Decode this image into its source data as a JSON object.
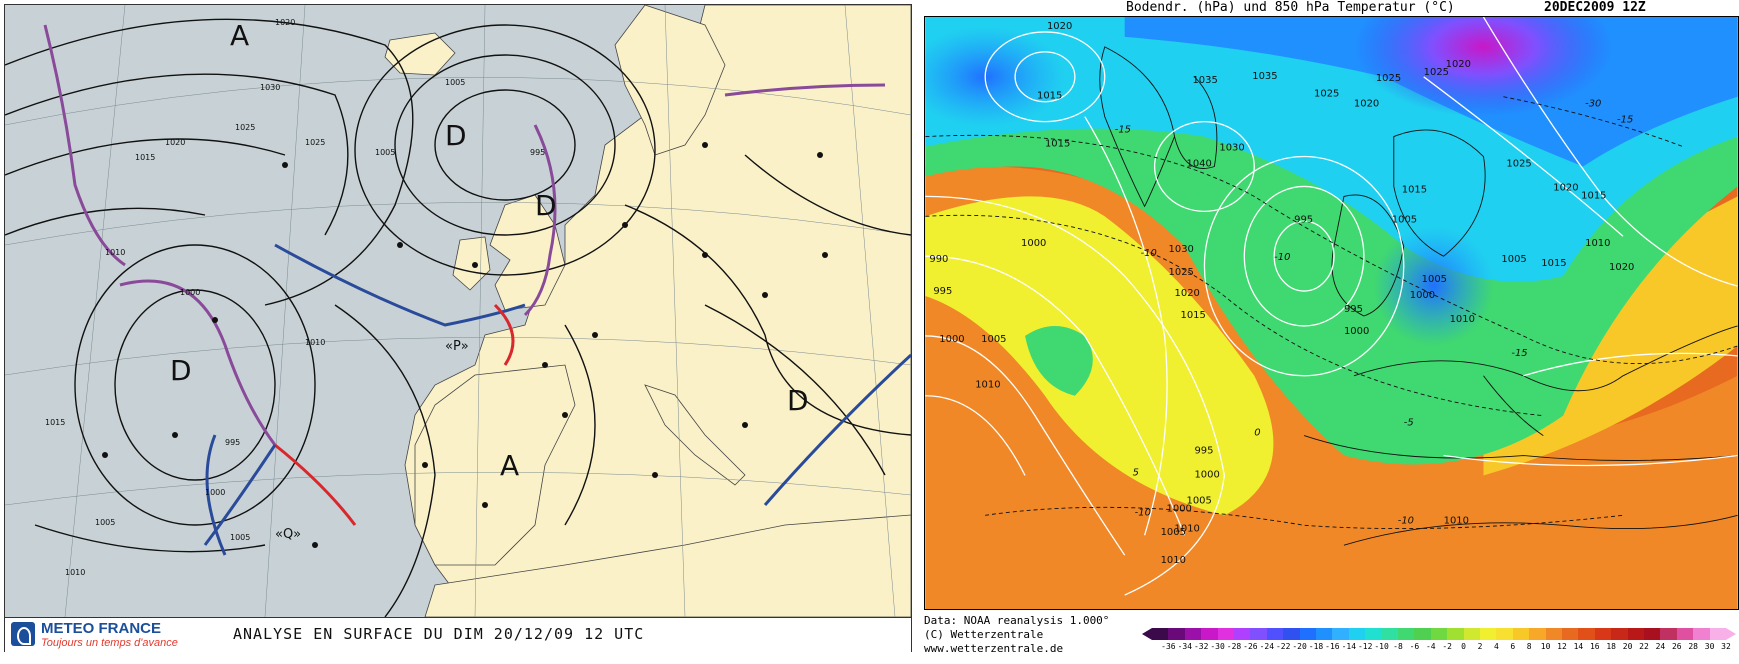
{
  "left_panel": {
    "brand": "METEO FRANCE",
    "tagline": "Toujours un temps d'avance",
    "title": "ANALYSE EN SURFACE DU  DIM   20/12/09   12 UTC",
    "pressure_centers": [
      {
        "label": "A",
        "type": "high"
      },
      {
        "label": "D",
        "type": "low"
      },
      {
        "label": "D",
        "type": "low"
      },
      {
        "label": "D",
        "type": "low"
      },
      {
        "label": "A",
        "type": "high"
      },
      {
        "label": "D",
        "type": "low"
      }
    ],
    "named_lows": [
      "«P»",
      "«Q»"
    ],
    "isobar_labels": [
      "1030",
      "1025",
      "1020",
      "1015",
      "1010",
      "1005",
      "1000",
      "995",
      "1005",
      "1010",
      "1015",
      "1020",
      "1025",
      "995",
      "1000",
      "1005",
      "1005",
      "1010"
    ],
    "colors": {
      "ocean": "#c8d2d6",
      "land": "#faf1c8",
      "cold_front": "#2a4b9a",
      "warm_front": "#d8282e",
      "occluded_front": "#8a4a9a",
      "brand": "#1b4e9b",
      "tagline": "#e23a2e"
    }
  },
  "right_panel": {
    "title": "Bodendr. (hPa) und 850 hPa Temperatur (°C)",
    "date": "20DEC2009 12Z",
    "footer_lines": [
      "Data: NOAA reanalysis 1.000°",
      "(C) Wetterzentrale",
      "www.wetterzentrale.de"
    ],
    "colorbar_labels": [
      "-36",
      "-34",
      "-32",
      "-30",
      "-28",
      "-26",
      "-24",
      "-22",
      "-20",
      "-18",
      "-16",
      "-14",
      "-12",
      "-10",
      "-8",
      "-6",
      "-4",
      "-2",
      "0",
      "2",
      "4",
      "6",
      "8",
      "10",
      "12",
      "14",
      "16",
      "18",
      "20",
      "22",
      "24",
      "26",
      "28",
      "30",
      "32"
    ],
    "colorbar_colors": [
      "#3a0a4a",
      "#6a0a7a",
      "#9a10a8",
      "#c818c8",
      "#e030e0",
      "#b040ff",
      "#8050ff",
      "#5050ff",
      "#3050f0",
      "#2070ff",
      "#2090ff",
      "#30b0ff",
      "#20d0f0",
      "#20e0d0",
      "#30e0a0",
      "#40d870",
      "#50d050",
      "#70d840",
      "#a0e030",
      "#d0e830",
      "#f0f030",
      "#f8e030",
      "#f8c828",
      "#f8a828",
      "#f08828",
      "#e86a20",
      "#e05018",
      "#d83818",
      "#c82818",
      "#b81818",
      "#a81020",
      "#c03060",
      "#e050a0",
      "#f080d0",
      "#f8b0e8"
    ],
    "isobar_labels": [
      "1020",
      "1015",
      "1015",
      "1035",
      "1035",
      "1030",
      "1040",
      "1025",
      "1025",
      "1020",
      "1020",
      "1025",
      "1025",
      "1020",
      "1015",
      "1005",
      "995",
      "1030",
      "1025",
      "1020",
      "1015",
      "995",
      "1000",
      "1000",
      "1005",
      "1010",
      "1000",
      "1005",
      "1010",
      "1015",
      "1020",
      "1015",
      "1005",
      "1000",
      "1010",
      "990",
      "995",
      "1000",
      "1005",
      "1010",
      "995",
      "1000",
      "1005",
      "1010",
      "1010"
    ],
    "temperature_labels": [
      "-30",
      "-15",
      "-15",
      "-10",
      "-10",
      "-5",
      "0",
      "5",
      "-10",
      "-15",
      "-10"
    ]
  }
}
